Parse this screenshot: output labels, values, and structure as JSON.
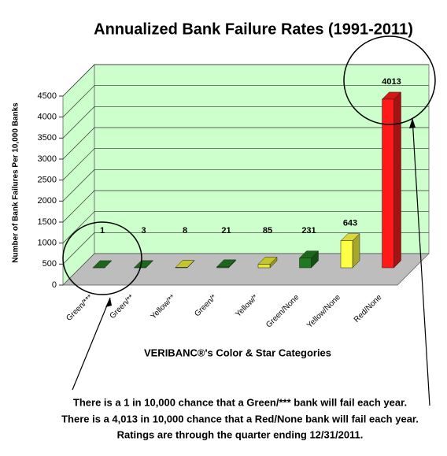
{
  "chart_data": {
    "type": "bar3d",
    "title": "Annualized Bank Failure Rates (1991-2011)",
    "y_label": "Number of Bank Failures Per 10,000 Banks",
    "x_label": "VERIBANC®'s Color & Star Categories",
    "categories": [
      "Green/***",
      "Green/**",
      "Yellow/**",
      "Green/*",
      "Yellow/*",
      "Green/None",
      "Yellow/None",
      "Red/None"
    ],
    "values": [
      1,
      3,
      8,
      21,
      85,
      231,
      643,
      4013
    ],
    "colors": [
      "#1f7a1f",
      "#1f7a1f",
      "#e6e633",
      "#1f7a1f",
      "#e6e633",
      "#1f7a1f",
      "#ffff44",
      "#ff1a1a"
    ],
    "ylim": [
      0,
      4500
    ],
    "yticks": [
      0,
      500,
      1000,
      1500,
      2000,
      2500,
      3000,
      3500,
      4000,
      4500
    ],
    "grid": true,
    "annotations": [
      "There is a 1 in 10,000 chance that a Green/*** bank will fail each year.",
      "There is a 4,013 in 10,000 chance that a Red/None bank will fail each year.",
      "Ratings are through the quarter ending 12/31/2011."
    ]
  }
}
